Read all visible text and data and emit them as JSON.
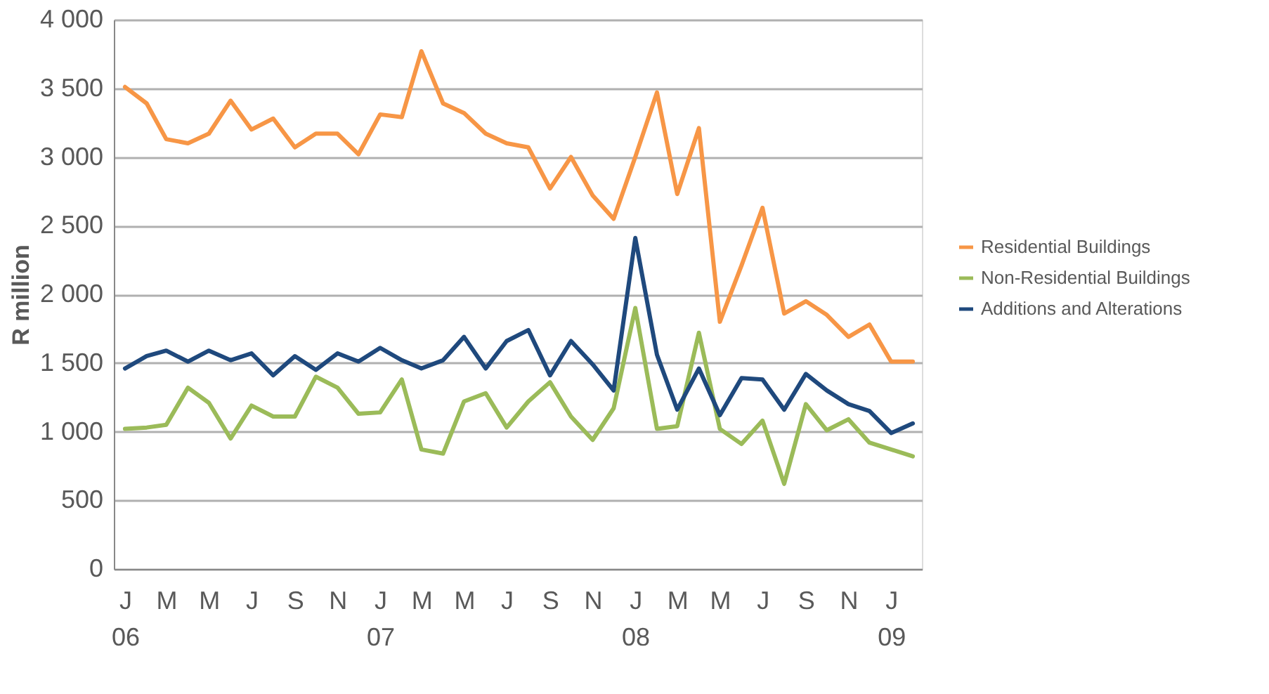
{
  "chart_data": {
    "type": "line",
    "ylabel": "R million",
    "x": [
      "2006-01",
      "2006-02",
      "2006-03",
      "2006-04",
      "2006-05",
      "2006-06",
      "2006-07",
      "2006-08",
      "2006-09",
      "2006-10",
      "2006-11",
      "2006-12",
      "2007-01",
      "2007-02",
      "2007-03",
      "2007-04",
      "2007-05",
      "2007-06",
      "2007-07",
      "2007-08",
      "2007-09",
      "2007-10",
      "2007-11",
      "2007-12",
      "2008-01",
      "2008-02",
      "2008-03",
      "2008-04",
      "2008-05",
      "2008-06",
      "2008-07",
      "2008-08",
      "2008-09",
      "2008-10",
      "2008-11",
      "2008-12",
      "2009-01",
      "2009-02"
    ],
    "series": [
      {
        "name": "Residential Buildings",
        "color": "#f79646",
        "values": [
          3510,
          3390,
          3130,
          3100,
          3170,
          3410,
          3200,
          3280,
          3070,
          3170,
          3170,
          3020,
          3310,
          3290,
          3770,
          3390,
          3320,
          3170,
          3100,
          3070,
          2770,
          3000,
          2720,
          2550,
          3000,
          3470,
          2730,
          3210,
          1800,
          2210,
          2630,
          1860,
          1950,
          1850,
          1690,
          1780,
          1510,
          1510
        ]
      },
      {
        "name": "Non-Residential Buildings",
        "color": "#9bbb59",
        "values": [
          1020,
          1030,
          1050,
          1320,
          1210,
          950,
          1190,
          1110,
          1110,
          1400,
          1320,
          1130,
          1140,
          1380,
          870,
          840,
          1220,
          1280,
          1030,
          1220,
          1360,
          1110,
          940,
          1170,
          1900,
          1020,
          1040,
          1720,
          1020,
          910,
          1080,
          620,
          1200,
          1010,
          1090,
          920,
          870,
          820
        ]
      },
      {
        "name": "Additions and Alterations",
        "color": "#1f497d",
        "values": [
          1460,
          1550,
          1590,
          1510,
          1590,
          1520,
          1570,
          1410,
          1550,
          1450,
          1570,
          1510,
          1610,
          1520,
          1460,
          1520,
          1690,
          1460,
          1660,
          1740,
          1410,
          1660,
          1490,
          1300,
          2410,
          1560,
          1160,
          1460,
          1120,
          1390,
          1380,
          1160,
          1420,
          1300,
          1200,
          1150,
          990,
          1060
        ]
      }
    ],
    "xlim": [
      "2005-12-16",
      "2009-02-14"
    ],
    "xticks": [
      {
        "value": "2006-01",
        "label": "J\n06"
      },
      {
        "value": "2006-03",
        "label": "M"
      },
      {
        "value": "2006-05",
        "label": "M"
      },
      {
        "value": "2006-07",
        "label": "J"
      },
      {
        "value": "2006-09",
        "label": "S"
      },
      {
        "value": "2006-11",
        "label": "N"
      },
      {
        "value": "2007-01",
        "label": "J\n07"
      },
      {
        "value": "2007-03",
        "label": "M"
      },
      {
        "value": "2007-05",
        "label": "M"
      },
      {
        "value": "2007-07",
        "label": "J"
      },
      {
        "value": "2007-09",
        "label": "S"
      },
      {
        "value": "2007-11",
        "label": "N"
      },
      {
        "value": "2008-01",
        "label": "J\n08"
      },
      {
        "value": "2008-03",
        "label": "M"
      },
      {
        "value": "2008-05",
        "label": "M"
      },
      {
        "value": "2008-07",
        "label": "J"
      },
      {
        "value": "2008-09",
        "label": "S"
      },
      {
        "value": "2008-11",
        "label": "N"
      },
      {
        "value": "2009-01",
        "label": "J\n09"
      }
    ],
    "ylim": [
      0,
      4000
    ],
    "yticks": [
      {
        "value": 0,
        "label": "0"
      },
      {
        "value": 500,
        "label": "500"
      },
      {
        "value": 1000,
        "label": "1 000"
      },
      {
        "value": 1500,
        "label": "1 500"
      },
      {
        "value": 2000,
        "label": "2 000"
      },
      {
        "value": 2500,
        "label": "2 500"
      },
      {
        "value": 3000,
        "label": "3 000"
      },
      {
        "value": 3500,
        "label": "3 500"
      },
      {
        "value": 4000,
        "label": "4 000"
      }
    ],
    "grid": "y",
    "legend": "right",
    "marker": "none",
    "line_style": "solid"
  }
}
